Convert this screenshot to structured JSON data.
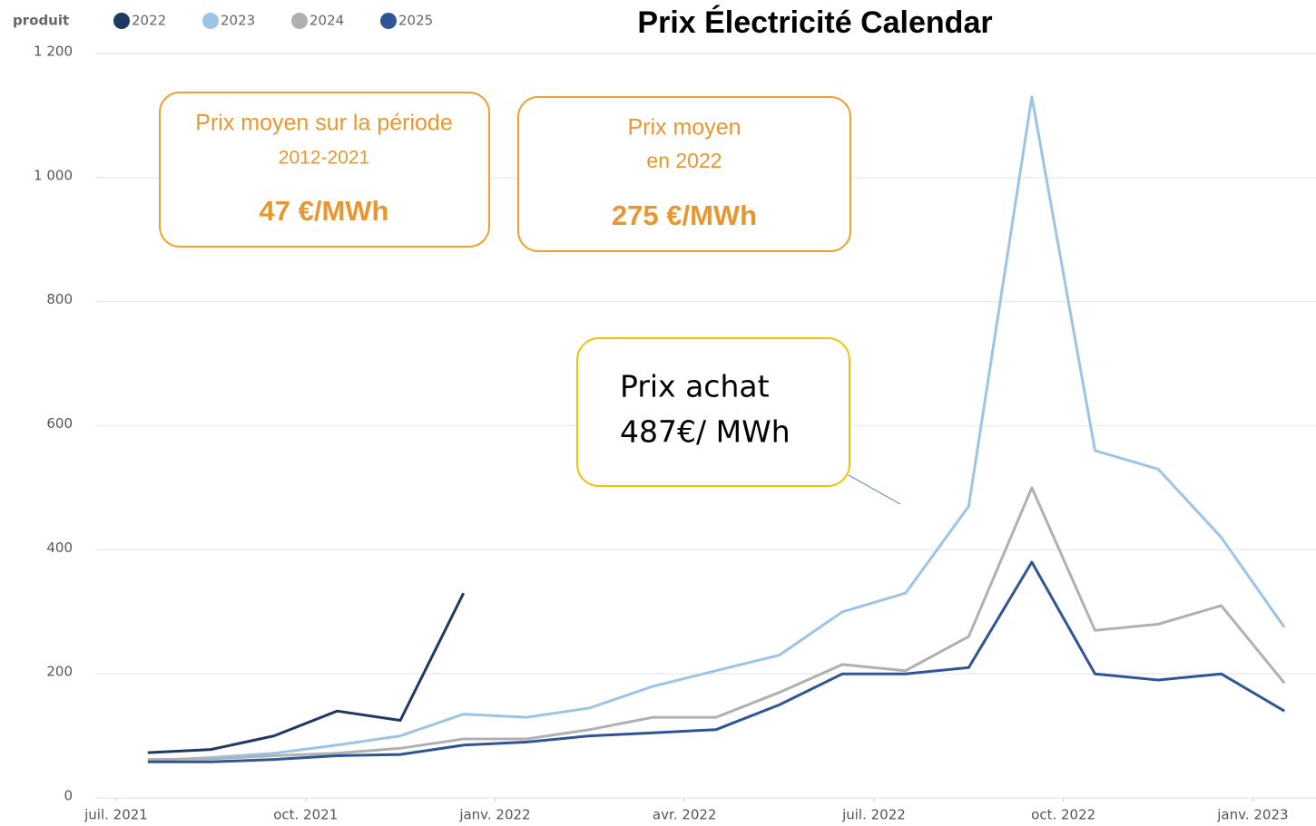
{
  "chart_data": {
    "type": "line",
    "title": "Prix Électricité Calendar",
    "legend_title": "produit",
    "legend_position": "top-left",
    "x": [
      "2021-07",
      "2021-08",
      "2021-09",
      "2021-10",
      "2021-11",
      "2021-12",
      "2022-01",
      "2022-02",
      "2022-03",
      "2022-04",
      "2022-05",
      "2022-06",
      "2022-07",
      "2022-08",
      "2022-09",
      "2022-10",
      "2022-11",
      "2022-12",
      "2023-01"
    ],
    "xlim": [
      "2021-07",
      "2023-02"
    ],
    "xticks": [
      {
        "value": "2021-07",
        "label": "juil. 2021"
      },
      {
        "value": "2021-10",
        "label": "oct. 2021"
      },
      {
        "value": "2022-01",
        "label": "janv. 2022"
      },
      {
        "value": "2022-04",
        "label": "avr. 2022"
      },
      {
        "value": "2022-07",
        "label": "juil. 2022"
      },
      {
        "value": "2022-10",
        "label": "oct. 2022"
      },
      {
        "value": "2023-01",
        "label": "janv. 2023"
      }
    ],
    "ylim": [
      0,
      1200
    ],
    "yticks": [
      0,
      200,
      400,
      600,
      800,
      {
        "value": 1000,
        "label": "1 000"
      },
      {
        "value": 1200,
        "label": "1 200"
      }
    ],
    "grid": true,
    "series": [
      {
        "name": "2022",
        "color": "#1f3864",
        "values": [
          73,
          78,
          100,
          140,
          125,
          330,
          null,
          null,
          null,
          null,
          null,
          null,
          null,
          null,
          null,
          null,
          null,
          null,
          null
        ]
      },
      {
        "name": "2023",
        "color": "#9dc3e6",
        "values": [
          60,
          65,
          72,
          85,
          100,
          135,
          130,
          145,
          180,
          205,
          230,
          300,
          330,
          470,
          1130,
          560,
          530,
          420,
          275
        ]
      },
      {
        "name": "2024",
        "color": "#b0b0b0",
        "values": [
          62,
          63,
          68,
          72,
          80,
          95,
          95,
          110,
          130,
          130,
          170,
          215,
          205,
          260,
          500,
          270,
          280,
          310,
          185
        ]
      },
      {
        "name": "2025",
        "color": "#2f5597",
        "values": [
          58,
          58,
          62,
          68,
          70,
          85,
          90,
          100,
          105,
          110,
          150,
          200,
          200,
          210,
          380,
          200,
          190,
          200,
          140
        ]
      }
    ],
    "annotations": [
      {
        "text": [
          "Prix moyen sur la période",
          "2012-2021",
          "47 €/MWh"
        ]
      },
      {
        "text": [
          "Prix moyen",
          "en 2022",
          "275 €/MWh"
        ]
      },
      {
        "text": [
          "Prix achat",
          "487€/ MWh"
        ]
      }
    ]
  }
}
